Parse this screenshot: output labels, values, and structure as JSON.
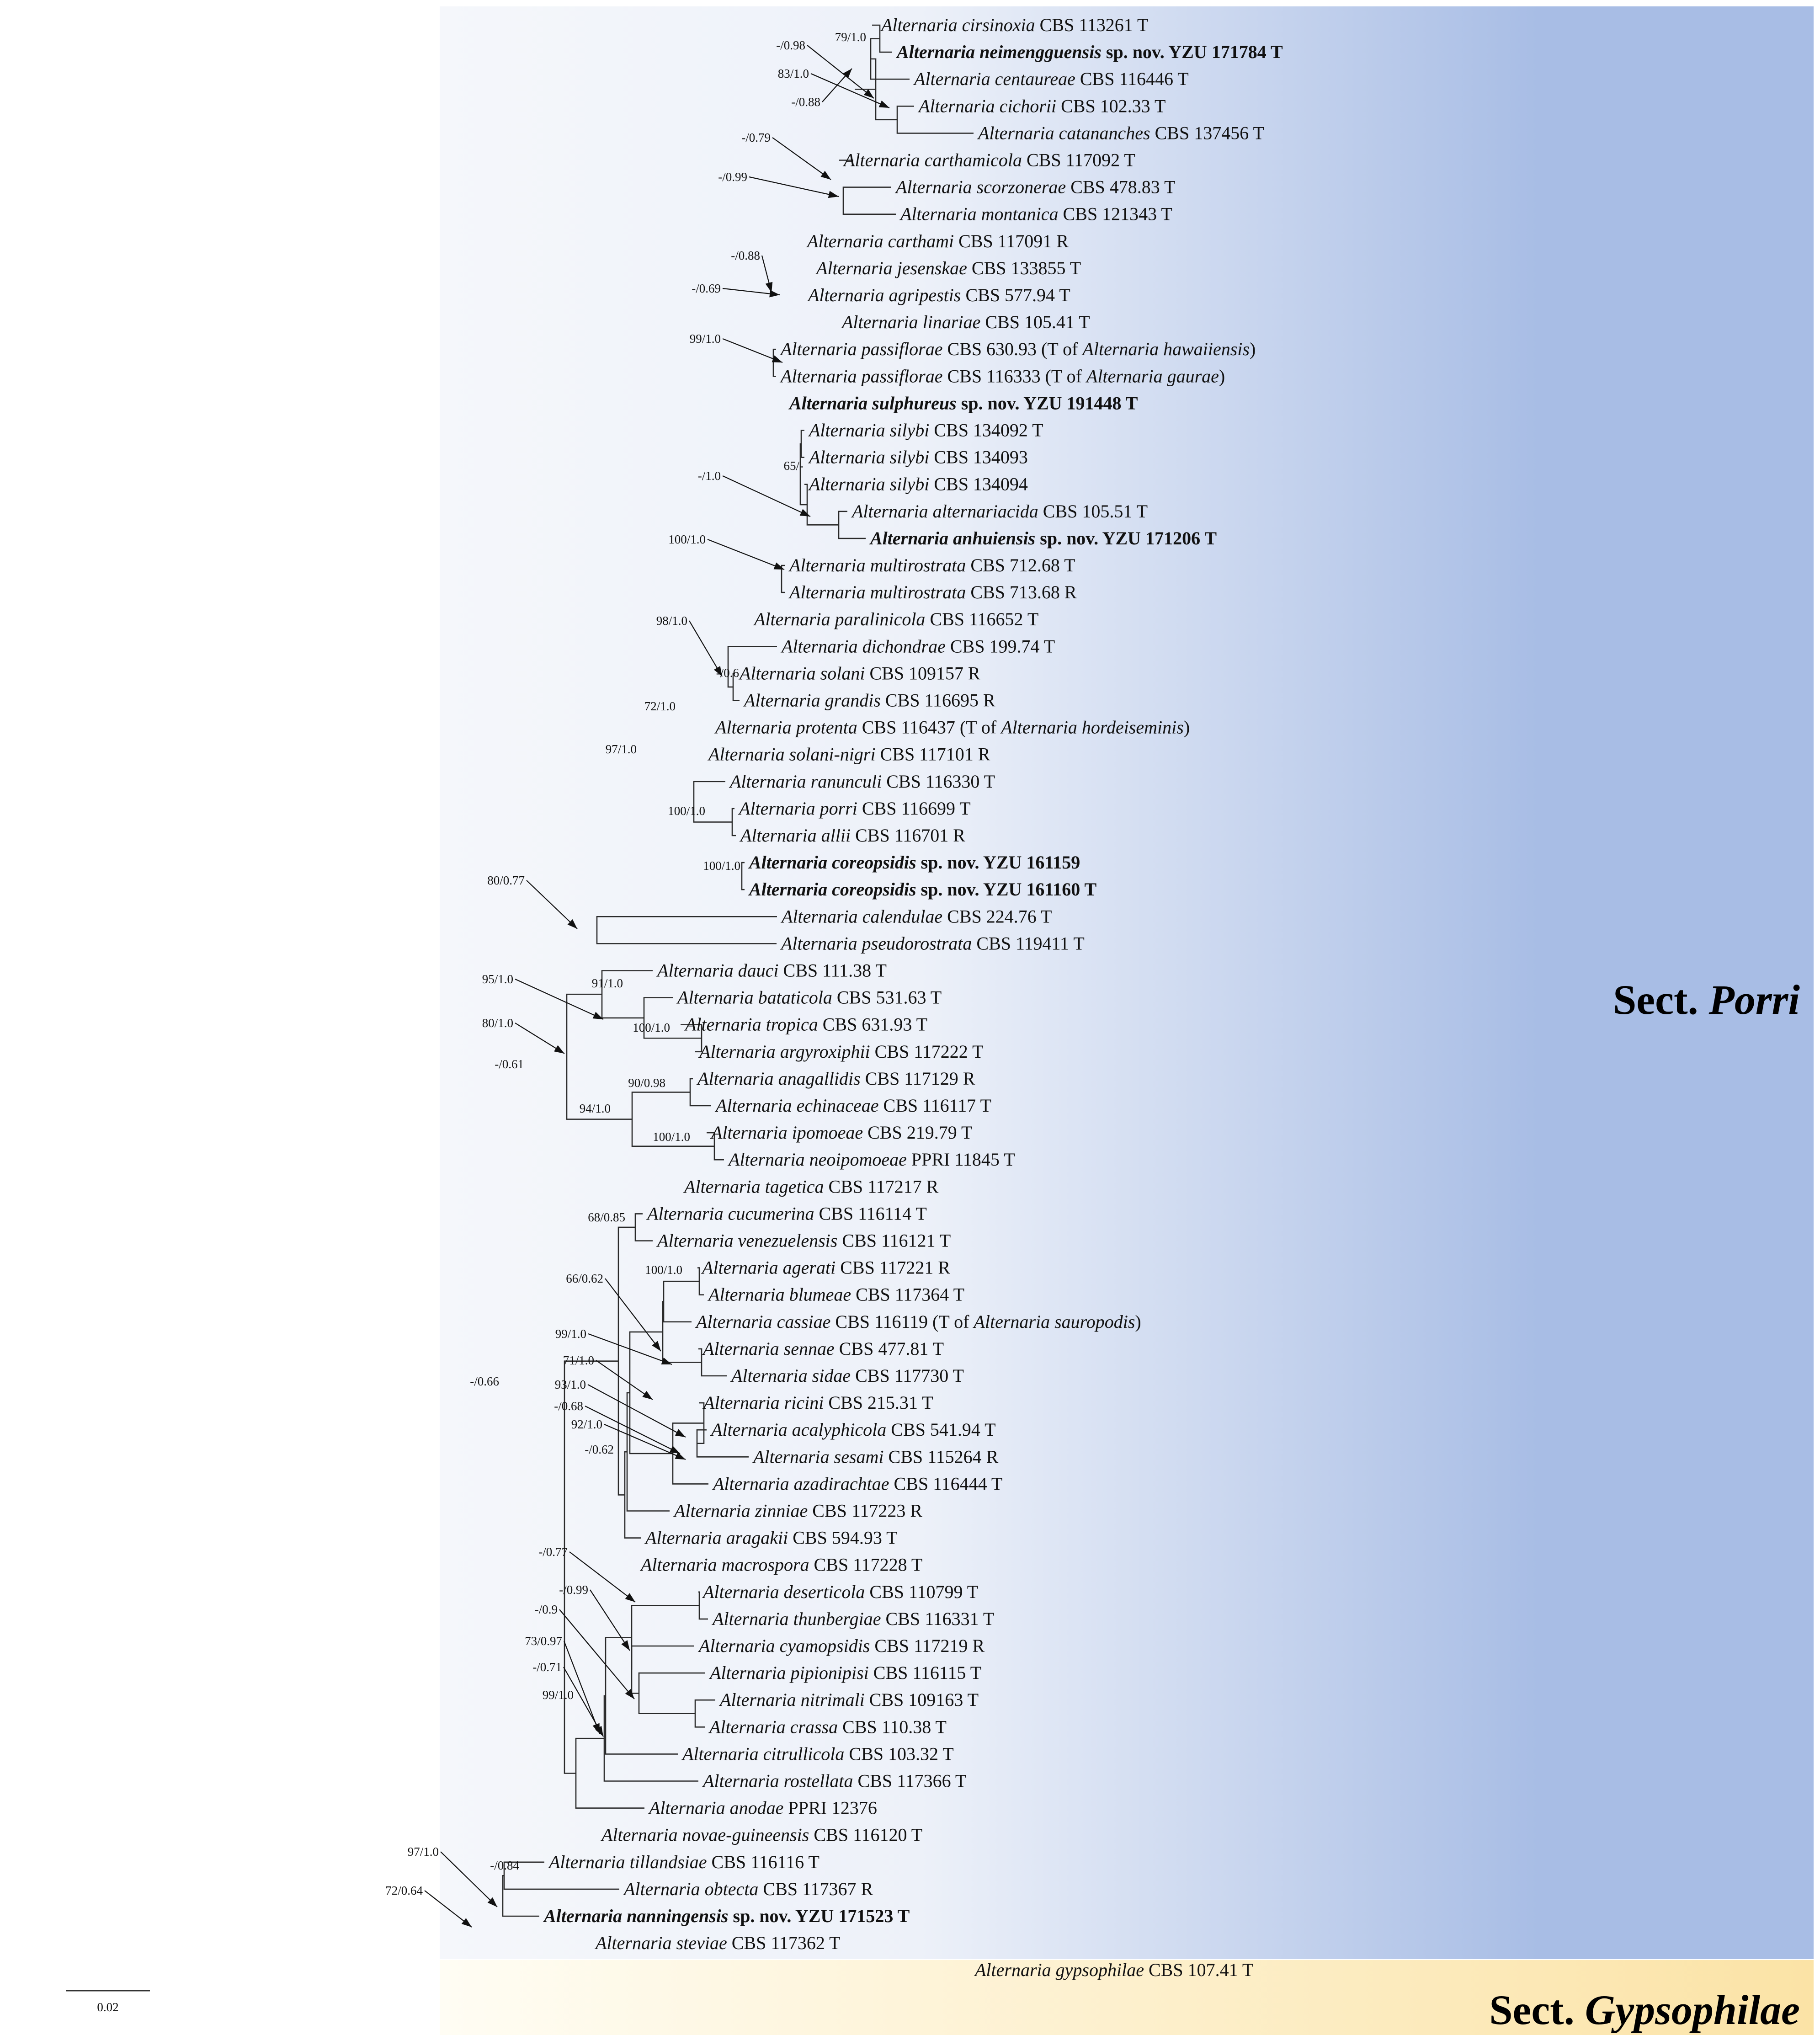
{
  "scale_label": "0.02",
  "sections": {
    "porri": {
      "prefix": "Sect.",
      "name": "Porri"
    },
    "gypsophilae": {
      "prefix": "Sect.",
      "name": "Gypsophilae"
    }
  },
  "colors": {
    "porri_band_start": "#f5f7fb",
    "porri_band_end": "#a8bde5",
    "gypsophilae_band_start": "#fffdf4",
    "gypsophilae_band_end": "#fbe3a6"
  },
  "tips": [
    {
      "id": "t0",
      "genus": "Alternaria",
      "epithet": "cirsinoxia",
      "rest": "CBS 113261 T",
      "new": false
    },
    {
      "id": "t1",
      "genus": "Alternaria",
      "epithet": "neimengguensis",
      "rest": "sp. nov. YZU 171784 T",
      "new": true
    },
    {
      "id": "t2",
      "genus": "Alternaria",
      "epithet": "centaureae",
      "rest": "CBS 116446 T",
      "new": false
    },
    {
      "id": "t3",
      "genus": "Alternaria",
      "epithet": "cichorii",
      "rest": "CBS 102.33 T",
      "new": false
    },
    {
      "id": "t4",
      "genus": "Alternaria",
      "epithet": "catananches",
      "rest": "CBS 137456 T",
      "new": false
    },
    {
      "id": "t5",
      "genus": "Alternaria",
      "epithet": "carthamicola",
      "rest": "CBS 117092 T",
      "new": false
    },
    {
      "id": "t6",
      "genus": "Alternaria",
      "epithet": "scorzonerae",
      "rest": "CBS 478.83 T",
      "new": false
    },
    {
      "id": "t7",
      "genus": "Alternaria",
      "epithet": "montanica",
      "rest": "CBS 121343 T",
      "new": false
    },
    {
      "id": "t8",
      "genus": "Alternaria",
      "epithet": "carthami",
      "rest": "CBS 117091 R",
      "new": false
    },
    {
      "id": "t9",
      "genus": "Alternaria",
      "epithet": "jesenskae",
      "rest": "CBS 133855 T",
      "new": false
    },
    {
      "id": "t10",
      "genus": "Alternaria",
      "epithet": "agripestis",
      "rest": "CBS 577.94 T",
      "new": false
    },
    {
      "id": "t11",
      "genus": "Alternaria",
      "epithet": "linariae",
      "rest": "CBS 105.41 T",
      "new": false
    },
    {
      "id": "t12",
      "genus": "Alternaria",
      "epithet": "passiflorae",
      "rest": "CBS 630.93 (T of",
      "extra_genus": "Alternaria hawaiiensis",
      "extra_end": ")",
      "new": false
    },
    {
      "id": "t13",
      "genus": "Alternaria",
      "epithet": "passiflorae",
      "rest": "CBS 116333 (T of",
      "extra_genus": "Alternaria gaurae",
      "extra_end": ")",
      "new": false
    },
    {
      "id": "t14",
      "genus": "Alternaria",
      "epithet": "sulphureus",
      "rest": "sp. nov. YZU 191448 T",
      "new": true
    },
    {
      "id": "t15",
      "genus": "Alternaria",
      "epithet": "silybi",
      "rest": "CBS 134092 T",
      "new": false
    },
    {
      "id": "t16",
      "genus": "Alternaria",
      "epithet": "silybi",
      "rest": "CBS 134093",
      "new": false
    },
    {
      "id": "t17",
      "genus": "Alternaria",
      "epithet": "silybi",
      "rest": "CBS 134094",
      "new": false
    },
    {
      "id": "t18",
      "genus": "Alternaria",
      "epithet": "alternariacida",
      "rest": "CBS 105.51 T",
      "new": false
    },
    {
      "id": "t19",
      "genus": "Alternaria",
      "epithet": "anhuiensis",
      "rest": "sp. nov. YZU 171206 T",
      "new": true
    },
    {
      "id": "t20",
      "genus": "Alternaria",
      "epithet": "multirostrata",
      "rest": "CBS 712.68 T",
      "new": false
    },
    {
      "id": "t21",
      "genus": "Alternaria",
      "epithet": "multirostrata",
      "rest": "CBS 713.68 R",
      "new": false
    },
    {
      "id": "t22",
      "genus": "Alternaria",
      "epithet": "paralinicola",
      "rest": "CBS 116652 T",
      "new": false
    },
    {
      "id": "t23",
      "genus": "Alternaria",
      "epithet": "dichondrae",
      "rest": "CBS 199.74 T",
      "new": false
    },
    {
      "id": "t24",
      "genus": "Alternaria",
      "epithet": "solani",
      "rest": "CBS 109157 R",
      "new": false
    },
    {
      "id": "t25",
      "genus": "Alternaria",
      "epithet": "grandis",
      "rest": "CBS 116695 R",
      "new": false
    },
    {
      "id": "t26",
      "genus": "Alternaria",
      "epithet": "protenta",
      "rest": "CBS 116437 (T of",
      "extra_genus": "Alternaria hordeiseminis",
      "extra_end": ")",
      "new": false
    },
    {
      "id": "t27",
      "genus": "Alternaria",
      "epithet": "solani-nigri",
      "rest": "CBS 117101 R",
      "new": false
    },
    {
      "id": "t28",
      "genus": "Alternaria",
      "epithet": "ranunculi",
      "rest": "CBS 116330 T",
      "new": false
    },
    {
      "id": "t29",
      "genus": "Alternaria",
      "epithet": "porri",
      "rest": "CBS 116699 T",
      "new": false
    },
    {
      "id": "t30",
      "genus": "Alternaria",
      "epithet": "allii",
      "rest": "CBS 116701 R",
      "new": false
    },
    {
      "id": "t31",
      "genus": "Alternaria",
      "epithet": "coreopsidis",
      "rest": "sp. nov. YZU 161159",
      "new": true
    },
    {
      "id": "t32",
      "genus": "Alternaria",
      "epithet": "coreopsidis",
      "rest": "sp. nov. YZU 161160 T",
      "new": true
    },
    {
      "id": "t33",
      "genus": "Alternaria",
      "epithet": "calendulae",
      "rest": "CBS 224.76 T",
      "new": false
    },
    {
      "id": "t34",
      "genus": "Alternaria",
      "epithet": "pseudorostrata",
      "rest": "CBS 119411 T",
      "new": false
    },
    {
      "id": "t35",
      "genus": "Alternaria",
      "epithet": "dauci",
      "rest": "CBS 111.38 T",
      "new": false
    },
    {
      "id": "t36",
      "genus": "Alternaria",
      "epithet": "bataticola",
      "rest": "CBS 531.63 T",
      "new": false
    },
    {
      "id": "t37",
      "genus": "Alternaria",
      "epithet": "tropica",
      "rest": "CBS 631.93 T",
      "new": false
    },
    {
      "id": "t38",
      "genus": "Alternaria",
      "epithet": "argyroxiphii",
      "rest": "CBS 117222 T",
      "new": false
    },
    {
      "id": "t39",
      "genus": "Alternaria",
      "epithet": "anagallidis",
      "rest": "CBS 117129 R",
      "new": false
    },
    {
      "id": "t40",
      "genus": "Alternaria",
      "epithet": "echinaceae",
      "rest": "CBS 116117 T",
      "new": false
    },
    {
      "id": "t41",
      "genus": "Alternaria",
      "epithet": "ipomoeae",
      "rest": "CBS 219.79 T",
      "new": false
    },
    {
      "id": "t42",
      "genus": "Alternaria",
      "epithet": "neoipomoeae",
      "rest": "PPRI 11845 T",
      "new": false
    },
    {
      "id": "t43",
      "genus": "Alternaria",
      "epithet": "tagetica",
      "rest": "CBS 117217 R",
      "new": false
    },
    {
      "id": "t44",
      "genus": "Alternaria",
      "epithet": "cucumerina",
      "rest": "CBS 116114 T",
      "new": false
    },
    {
      "id": "t45",
      "genus": "Alternaria",
      "epithet": "venezuelensis",
      "rest": "CBS 116121 T",
      "new": false
    },
    {
      "id": "t46",
      "genus": "Alternaria",
      "epithet": "agerati",
      "rest": "CBS 117221 R",
      "new": false
    },
    {
      "id": "t47",
      "genus": "Alternaria",
      "epithet": "blumeae",
      "rest": "CBS 117364 T",
      "new": false
    },
    {
      "id": "t48",
      "genus": "Alternaria",
      "epithet": "cassiae",
      "rest": "CBS 116119 (T of",
      "extra_genus": "Alternaria sauropodis",
      "extra_end": ")",
      "new": false
    },
    {
      "id": "t49",
      "genus": "Alternaria",
      "epithet": "sennae",
      "rest": "CBS 477.81 T",
      "new": false
    },
    {
      "id": "t50",
      "genus": "Alternaria",
      "epithet": "sidae",
      "rest": "CBS 117730 T",
      "new": false
    },
    {
      "id": "t51",
      "genus": "Alternaria",
      "epithet": "ricini",
      "rest": "CBS 215.31 T",
      "new": false
    },
    {
      "id": "t52",
      "genus": "Alternaria",
      "epithet": "acalyphicola",
      "rest": "CBS 541.94 T",
      "new": false
    },
    {
      "id": "t53",
      "genus": "Alternaria",
      "epithet": "sesami",
      "rest": "CBS 115264 R",
      "new": false
    },
    {
      "id": "t54",
      "genus": "Alternaria",
      "epithet": "azadirachtae",
      "rest": "CBS 116444 T",
      "new": false
    },
    {
      "id": "t55",
      "genus": "Alternaria",
      "epithet": "zinniae",
      "rest": "CBS 117223 R",
      "new": false
    },
    {
      "id": "t56",
      "genus": "Alternaria",
      "epithet": "aragakii",
      "rest": "CBS 594.93 T",
      "new": false
    },
    {
      "id": "t57",
      "genus": "Alternaria",
      "epithet": "macrospora",
      "rest": "CBS 117228 T",
      "new": false
    },
    {
      "id": "t58",
      "genus": "Alternaria",
      "epithet": "deserticola",
      "rest": "CBS 110799 T",
      "new": false
    },
    {
      "id": "t59",
      "genus": "Alternaria",
      "epithet": "thunbergiae",
      "rest": "CBS 116331 T",
      "new": false
    },
    {
      "id": "t60",
      "genus": "Alternaria",
      "epithet": "cyamopsidis",
      "rest": "CBS 117219 R",
      "new": false
    },
    {
      "id": "t61",
      "genus": "Alternaria",
      "epithet": "pipionipisi",
      "rest": "CBS 116115 T",
      "new": false
    },
    {
      "id": "t62",
      "genus": "Alternaria",
      "epithet": "nitrimali",
      "rest": "CBS 109163 T",
      "new": false
    },
    {
      "id": "t63",
      "genus": "Alternaria",
      "epithet": "crassa",
      "rest": "CBS 110.38 T",
      "new": false
    },
    {
      "id": "t64",
      "genus": "Alternaria",
      "epithet": "citrullicola",
      "rest": "CBS 103.32 T",
      "new": false
    },
    {
      "id": "t65",
      "genus": "Alternaria",
      "epithet": "rostellata",
      "rest": "CBS 117366 T",
      "new": false
    },
    {
      "id": "t66",
      "genus": "Alternaria",
      "epithet": "anodae",
      "rest": "PPRI 12376",
      "new": false
    },
    {
      "id": "t67",
      "genus": "Alternaria",
      "epithet": "novae-guineensis",
      "rest": "CBS 116120 T",
      "new": false
    },
    {
      "id": "t68",
      "genus": "Alternaria",
      "epithet": "tillandsiae",
      "rest": "CBS 116116 T",
      "new": false
    },
    {
      "id": "t69",
      "genus": "Alternaria",
      "epithet": "obtecta",
      "rest": "CBS 117367 R",
      "new": false
    },
    {
      "id": "t70",
      "genus": "Alternaria",
      "epithet": "nanningensis",
      "rest": "sp. nov. YZU 171523 T",
      "new": true
    },
    {
      "id": "t71",
      "genus": "Alternaria",
      "epithet": "steviae",
      "rest": "CBS 117362 T",
      "new": false
    },
    {
      "id": "t72",
      "genus": "Alternaria",
      "epithet": "gypsophilae",
      "rest": "CBS 107.41 T",
      "new": false
    }
  ],
  "supports": [
    {
      "id": "s0",
      "text": "79/1.0"
    },
    {
      "id": "s1",
      "text": "-/0.98"
    },
    {
      "id": "s2",
      "text": "83/1.0"
    },
    {
      "id": "s3",
      "text": "-/0.88"
    },
    {
      "id": "s4",
      "text": "-/0.79"
    },
    {
      "id": "s5",
      "text": "-/0.99"
    },
    {
      "id": "s6",
      "text": "-/0.88"
    },
    {
      "id": "s7",
      "text": "-/0.69"
    },
    {
      "id": "s8",
      "text": "99/1.0"
    },
    {
      "id": "s9",
      "text": "65/-"
    },
    {
      "id": "s10",
      "text": "-/1.0"
    },
    {
      "id": "s11",
      "text": "100/1.0"
    },
    {
      "id": "s12",
      "text": "98/1.0"
    },
    {
      "id": "s13",
      "text": "-/0.6"
    },
    {
      "id": "s14",
      "text": "72/1.0"
    },
    {
      "id": "s15",
      "text": "97/1.0"
    },
    {
      "id": "s16",
      "text": "100/1.0"
    },
    {
      "id": "s17",
      "text": "100/1.0"
    },
    {
      "id": "s18",
      "text": "80/0.77"
    },
    {
      "id": "s19",
      "text": "95/1.0"
    },
    {
      "id": "s20",
      "text": "91/1.0"
    },
    {
      "id": "s21",
      "text": "80/1.0"
    },
    {
      "id": "s22",
      "text": "100/1.0"
    },
    {
      "id": "s23",
      "text": "-/0.61"
    },
    {
      "id": "s24",
      "text": "90/0.98"
    },
    {
      "id": "s25",
      "text": "94/1.0"
    },
    {
      "id": "s26",
      "text": "100/1.0"
    },
    {
      "id": "s27",
      "text": "68/0.85"
    },
    {
      "id": "s28",
      "text": "100/1.0"
    },
    {
      "id": "s29",
      "text": "66/0.62"
    },
    {
      "id": "s30",
      "text": "99/1.0"
    },
    {
      "id": "s31",
      "text": "71/1.0"
    },
    {
      "id": "s32",
      "text": "93/1.0"
    },
    {
      "id": "s33",
      "text": "-/0.68"
    },
    {
      "id": "s34",
      "text": "92/1.0"
    },
    {
      "id": "s35",
      "text": "-/0.62"
    },
    {
      "id": "s36",
      "text": "-/0.66"
    },
    {
      "id": "s37",
      "text": "-/0.77"
    },
    {
      "id": "s38",
      "text": "-/0.99"
    },
    {
      "id": "s39",
      "text": "-/0.9"
    },
    {
      "id": "s40",
      "text": "73/0.97"
    },
    {
      "id": "s41",
      "text": "-/0.71"
    },
    {
      "id": "s42",
      "text": "99/1.0"
    },
    {
      "id": "s43",
      "text": "97/1.0"
    },
    {
      "id": "s44",
      "text": "-/0.84"
    },
    {
      "id": "s45",
      "text": "72/0.64"
    }
  ]
}
